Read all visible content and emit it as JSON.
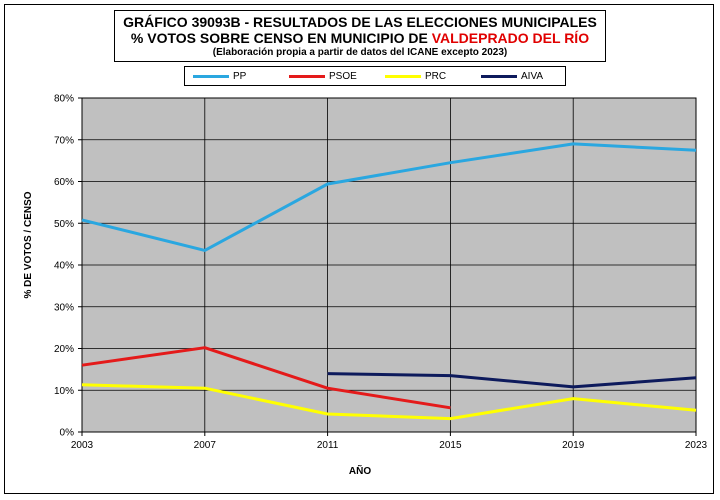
{
  "title": {
    "line1": "GRÁFICO 39093B - RESULTADOS DE LAS ELECCIONES MUNICIPALES",
    "line2_prefix": "% VOTOS SOBRE CENSO EN MUNICIPIO DE ",
    "line2_highlight": "VALDEPRADO DEL RÍO",
    "line3": "(Elaboración propia a partir de datos del ICANE excepto 2023)"
  },
  "colors": {
    "plot_background": "#c0c0c0",
    "highlight": "#e00000"
  },
  "chart_data": {
    "type": "line",
    "x": [
      2003,
      2007,
      2011,
      2015,
      2019,
      2023
    ],
    "xlabel": "AÑO",
    "ylabel": "% DE VOTOS / CENSO",
    "ylim": [
      0,
      80
    ],
    "yticks": [
      0,
      10,
      20,
      30,
      40,
      50,
      60,
      70,
      80
    ],
    "ytick_labels": [
      "0%",
      "10%",
      "20%",
      "30%",
      "40%",
      "50%",
      "60%",
      "70%",
      "80%"
    ],
    "grid": "horizontal",
    "legend_position": "top",
    "series": [
      {
        "name": "PP",
        "color": "#2aa7e0",
        "values": [
          50.8,
          43.5,
          59.4,
          64.5,
          69.0,
          67.5
        ]
      },
      {
        "name": "PSOE",
        "color": "#e41a1a",
        "values": [
          16.0,
          20.2,
          10.5,
          5.8,
          null,
          null
        ]
      },
      {
        "name": "PRC",
        "color": "#ffff00",
        "values": [
          11.3,
          10.5,
          4.3,
          3.2,
          8.0,
          5.2
        ]
      },
      {
        "name": "AIVA",
        "color": "#0d1a5c",
        "values": [
          null,
          null,
          14.0,
          13.5,
          10.8,
          13.0
        ]
      }
    ]
  }
}
